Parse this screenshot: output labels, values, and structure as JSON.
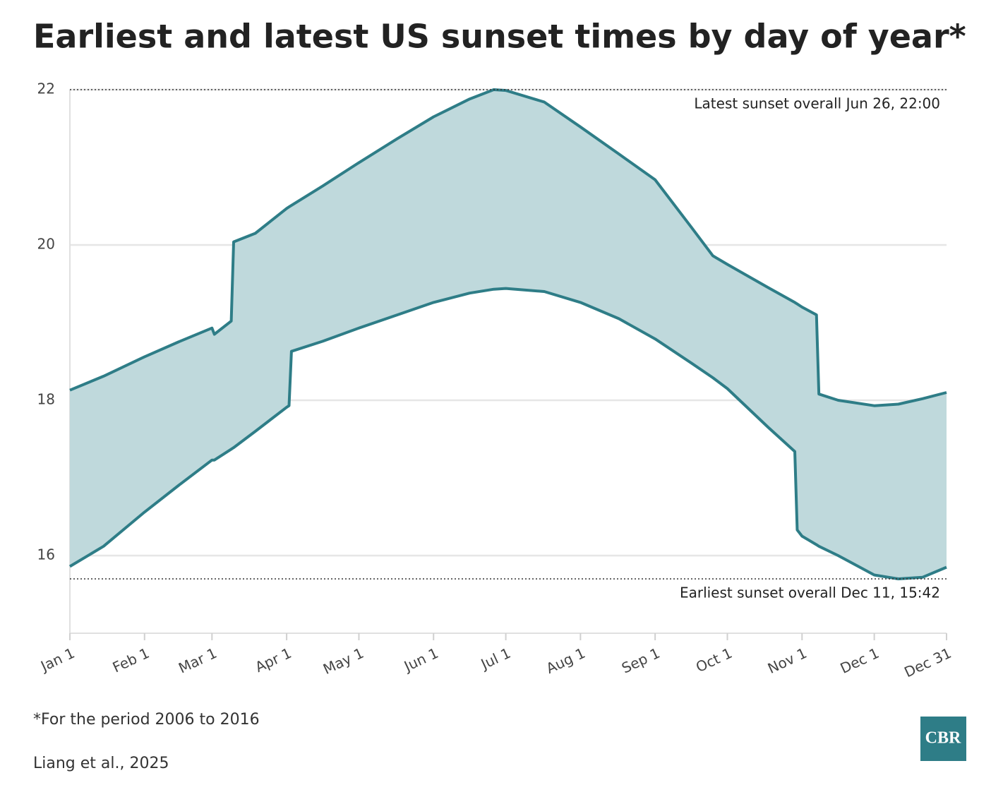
{
  "chart_data": {
    "type": "area",
    "title": "Earliest and latest US sunset times by day of year*",
    "x": [
      1,
      15,
      32,
      46,
      60,
      61,
      68,
      69,
      78,
      91,
      92,
      93,
      106,
      121,
      137,
      152,
      167,
      177,
      182,
      198,
      213,
      229,
      244,
      259,
      268,
      274,
      291,
      302,
      303,
      305,
      311,
      312,
      320,
      335,
      345,
      355,
      365
    ],
    "series": [
      {
        "color": "#2e7d87",
        "values": [
          18.13,
          18.31,
          18.56,
          18.75,
          18.93,
          18.85,
          19.02,
          20.04,
          20.15,
          20.47,
          20.49,
          20.51,
          20.76,
          21.06,
          21.37,
          21.65,
          21.88,
          22.0,
          21.99,
          21.84,
          21.52,
          21.17,
          20.84,
          20.23,
          19.86,
          19.75,
          19.45,
          19.26,
          19.24,
          19.2,
          19.1,
          18.08,
          18.0,
          17.93,
          17.95,
          18.02,
          18.1
        ]
      },
      {
        "color": "#2e7d87",
        "values": [
          15.86,
          16.12,
          16.56,
          16.9,
          17.23,
          17.23,
          17.37,
          17.39,
          17.6,
          17.91,
          17.93,
          18.63,
          18.76,
          18.93,
          19.1,
          19.26,
          19.38,
          19.43,
          19.44,
          19.4,
          19.26,
          19.05,
          18.79,
          18.48,
          18.29,
          18.15,
          17.65,
          17.34,
          16.33,
          16.25,
          16.14,
          16.12,
          16.0,
          15.75,
          15.7,
          15.72,
          15.85
        ]
      }
    ],
    "fill_color": "#bfd9dc",
    "xlim": [
      1,
      365
    ],
    "xticks": [
      {
        "value": 1,
        "label": "Jan 1"
      },
      {
        "value": 32,
        "label": "Feb 1"
      },
      {
        "value": 60,
        "label": "Mar 1"
      },
      {
        "value": 91,
        "label": "Apr 1"
      },
      {
        "value": 121,
        "label": "May 1"
      },
      {
        "value": 152,
        "label": "Jun 1"
      },
      {
        "value": 182,
        "label": "Jul 1"
      },
      {
        "value": 213,
        "label": "Aug 1"
      },
      {
        "value": 244,
        "label": "Sep 1"
      },
      {
        "value": 274,
        "label": "Oct 1"
      },
      {
        "value": 305,
        "label": "Nov 1"
      },
      {
        "value": 335,
        "label": "Dec 1"
      },
      {
        "value": 365,
        "label": "Dec 31"
      }
    ],
    "ylim": [
      15,
      22
    ],
    "yticks": [
      16,
      18,
      20,
      22
    ],
    "grid": true,
    "annotations": [
      {
        "text": "Latest sunset overall Jun 26, 22:00",
        "value": 22.0
      },
      {
        "text": "Earliest sunset overall Dec 11, 15:42",
        "value": 15.7
      }
    ],
    "footnote": "*For the period 2006 to 2016",
    "source": "Liang et al., 2025",
    "logo": "CBR"
  }
}
